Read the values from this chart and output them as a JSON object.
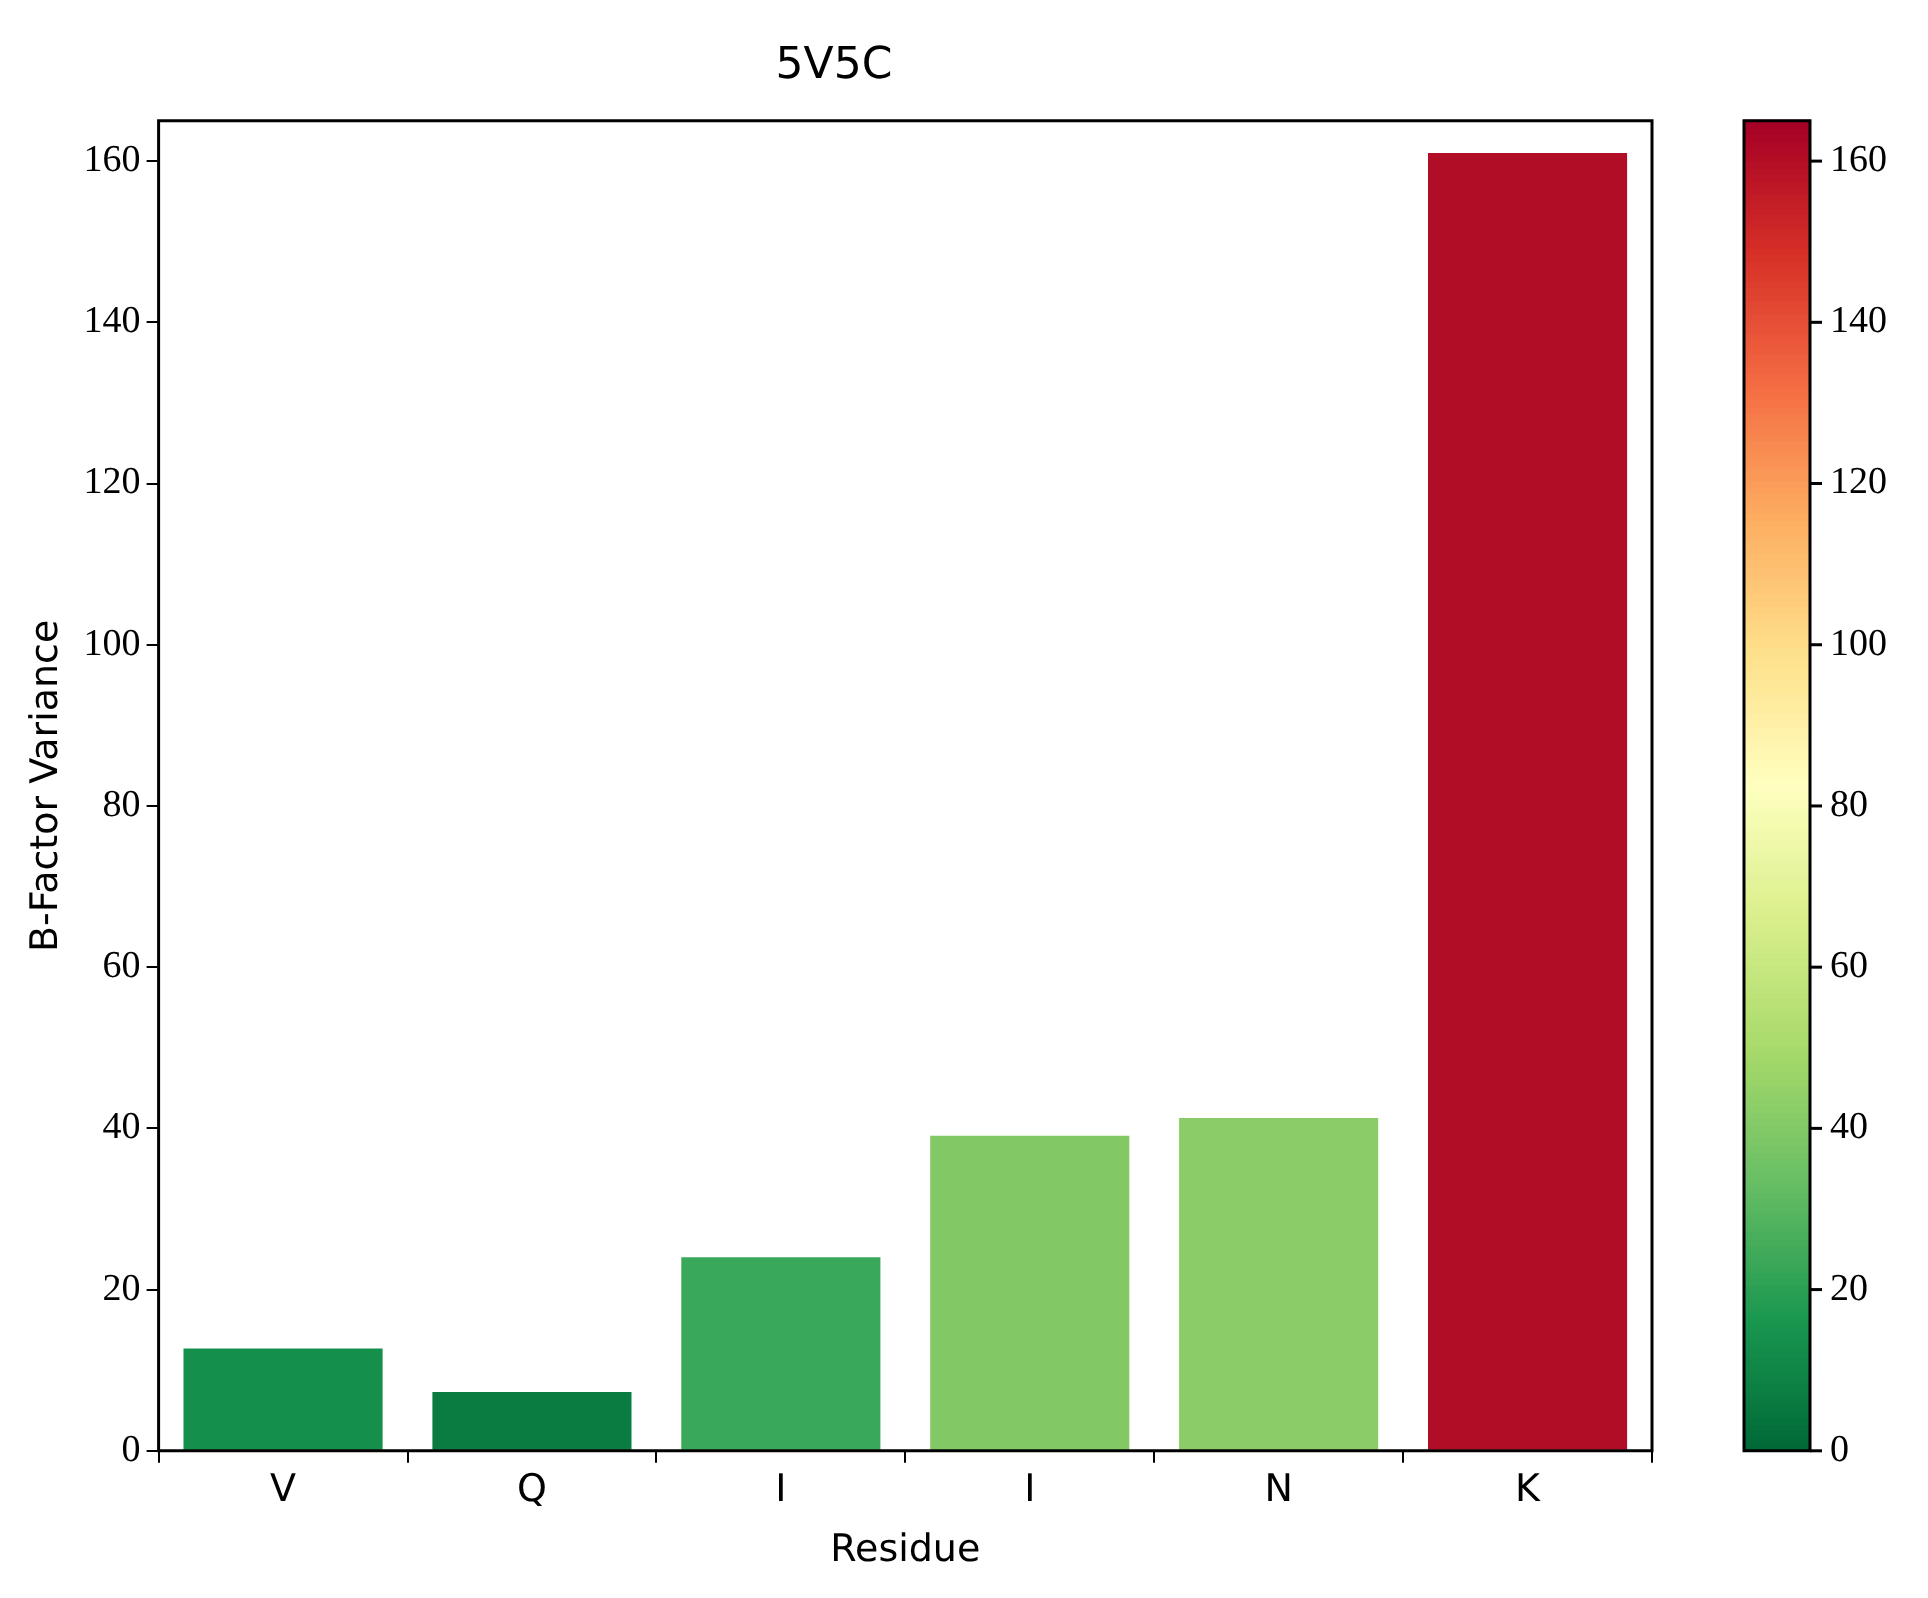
{
  "chart_data": {
    "type": "bar",
    "title": "5V5C",
    "xlabel": "Residue",
    "ylabel": "B-Factor Variance",
    "categories": [
      "V",
      "Q",
      "I",
      "I",
      "N",
      "K"
    ],
    "values": [
      12.7,
      7.3,
      24.0,
      39.1,
      41.3,
      161.0
    ],
    "colors": [
      "#148f4c",
      "#0a7c42",
      "#3aa85a",
      "#82c966",
      "#8ccc68",
      "#b10d26"
    ],
    "ylim": [
      0,
      165
    ],
    "yticks": [
      0,
      20,
      40,
      60,
      80,
      100,
      120,
      140,
      160
    ],
    "clim": [
      0,
      165
    ],
    "cticks": [
      0,
      20,
      40,
      60,
      80,
      100,
      120,
      140,
      160
    ],
    "grid": false,
    "legend": false
  }
}
